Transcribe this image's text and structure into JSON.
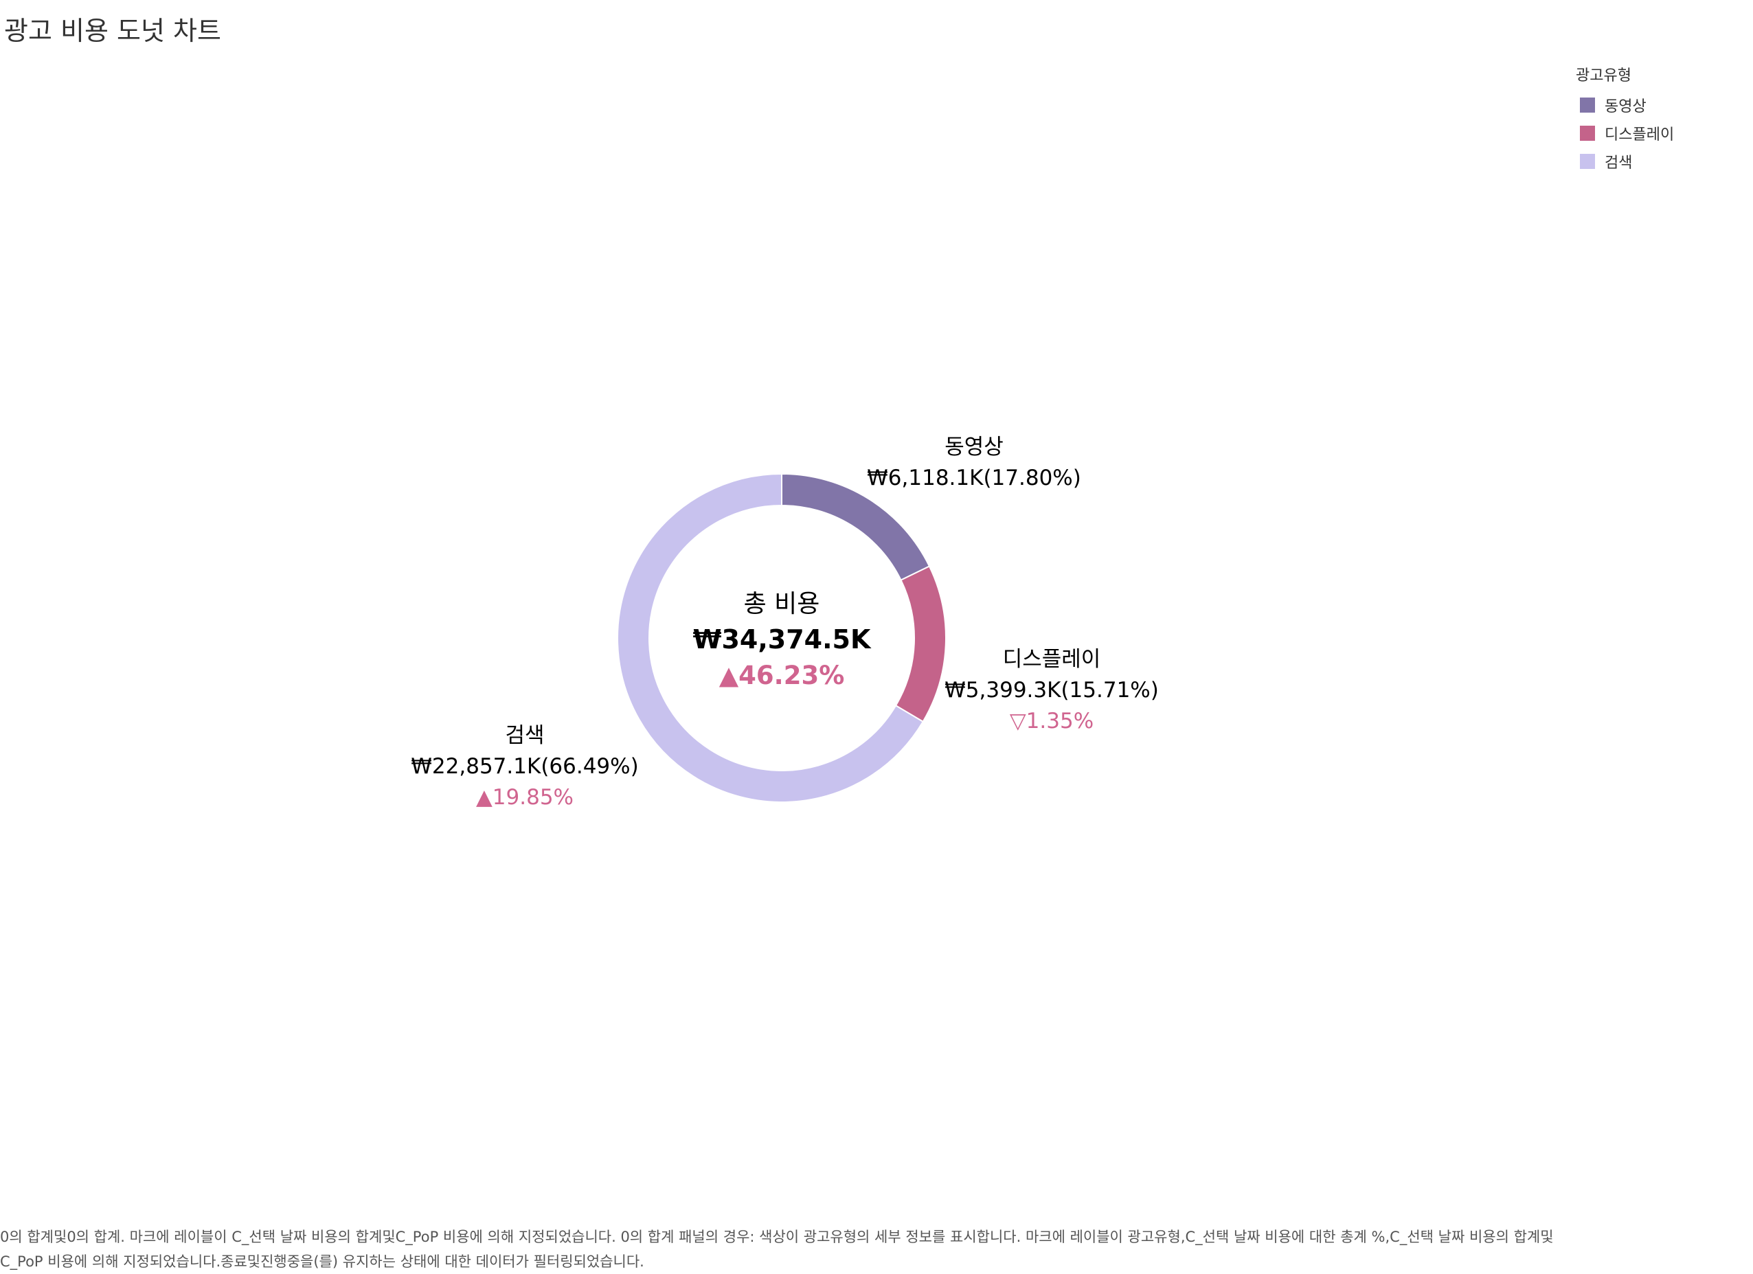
{
  "page": {
    "title": "광고 비용 도넛 차트",
    "footnote": "0의 합계및0의 합계. 마크에 레이블이 C_선택 날짜 비용의 합계및C_PoP 비용에 의해 지정되었습니다. 0의 합계 패널의 경우: 색상이 광고유형의 세부 정보를 표시합니다. 마크에 레이블이 광고유형,C_선택 날짜 비용에 대한 총계 %,C_선택 날짜 비용의 합계및C_PoP 비용에 의해 지정되었습니다.종료및진행중을(를) 유지하는 상태에 대한 데이터가 필터링되었습니다."
  },
  "legend": {
    "title": "광고유형",
    "items": [
      {
        "label": "동영상",
        "color": "#8175a8"
      },
      {
        "label": "디스플레이",
        "color": "#c4638a"
      },
      {
        "label": "검색",
        "color": "#c8c2ee"
      }
    ]
  },
  "chart_data": {
    "type": "pie",
    "donut": true,
    "center": {
      "label": "총 비용",
      "total": "₩34,374.5K",
      "change": "▲46.23%"
    },
    "series": [
      {
        "name": "동영상",
        "value": 6118.1,
        "value_label": "₩6,118.1K",
        "percent": 17.8,
        "percent_label": "(17.80%)",
        "change": "",
        "color": "#8175a8"
      },
      {
        "name": "디스플레이",
        "value": 5399.3,
        "value_label": "₩5,399.3K",
        "percent": 15.71,
        "percent_label": "(15.71%)",
        "change": "▽1.35%",
        "color": "#c4638a"
      },
      {
        "name": "검색",
        "value": 22857.1,
        "value_label": "₩22,857.1K",
        "percent": 66.49,
        "percent_label": "(66.49%)",
        "change": "▲19.85%",
        "color": "#c8c2ee"
      }
    ],
    "change_color": "#d0648f"
  }
}
